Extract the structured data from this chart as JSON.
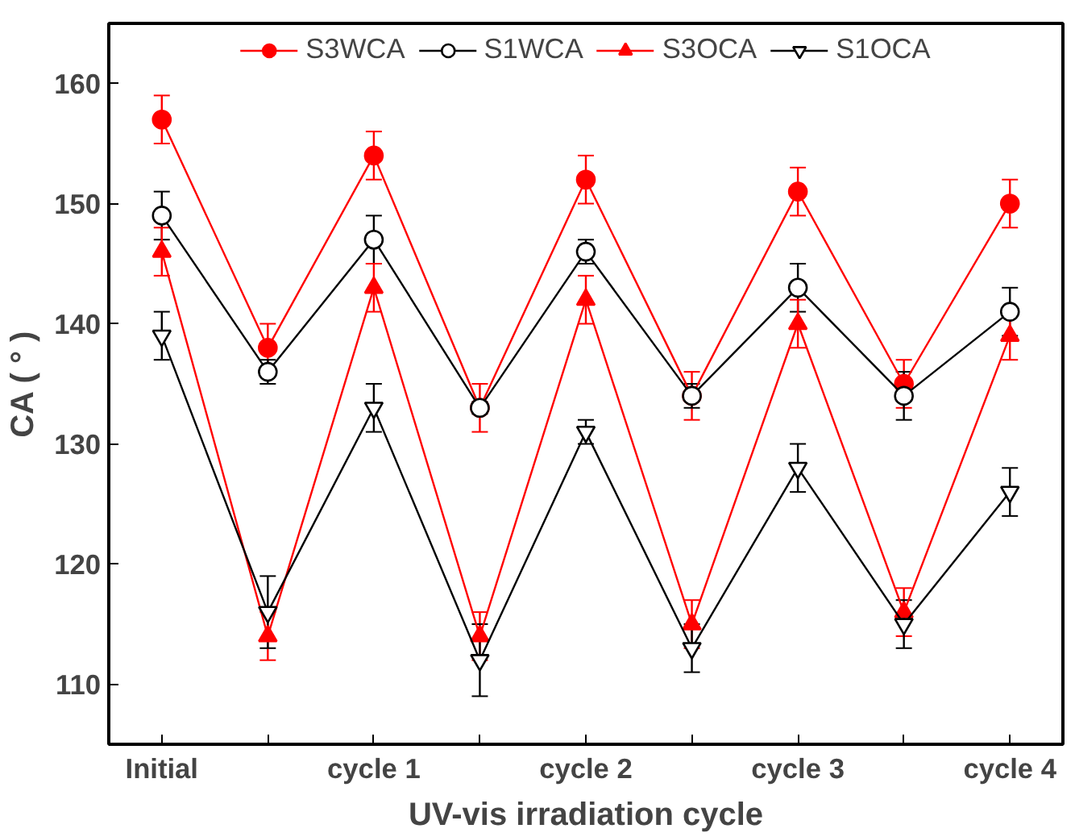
{
  "chart_data": {
    "type": "line",
    "xlabel": "UV-vis irradiation cycle",
    "ylabel": "CA ( ° )",
    "categories": [
      "Initial",
      null,
      "cycle 1",
      null,
      "cycle 2",
      null,
      "cycle 3",
      null,
      "cycle 4"
    ],
    "ylim": [
      105,
      165
    ],
    "yticks": [
      110,
      120,
      130,
      140,
      150,
      160
    ],
    "grid": false,
    "legend": "top",
    "series": [
      {
        "name": "S3WCA",
        "color": "#ff0000",
        "marker": "circle",
        "values": [
          157,
          138,
          154,
          133,
          152,
          134,
          151,
          135,
          150
        ],
        "errors": [
          2,
          2,
          2,
          2,
          2,
          2,
          2,
          2,
          2
        ]
      },
      {
        "name": "S1WCA",
        "color": "#000000",
        "marker": "circle_open",
        "values": [
          149,
          136,
          147,
          133,
          146,
          134,
          143,
          134,
          141
        ],
        "errors": [
          2,
          1,
          2,
          0.5,
          1,
          1,
          2,
          2,
          2
        ]
      },
      {
        "name": "S3OCA",
        "color": "#ff0000",
        "marker": "triangle",
        "values": [
          146,
          114,
          143,
          114,
          142,
          115,
          140,
          116,
          139
        ],
        "errors": [
          2,
          2,
          2,
          2,
          2,
          2,
          2,
          2,
          2
        ]
      },
      {
        "name": "S1OCA",
        "color": "#000000",
        "marker": "triangle_open",
        "values": [
          139,
          116,
          133,
          112,
          131,
          113,
          128,
          115,
          126
        ],
        "errors": [
          2,
          3,
          2,
          3,
          1,
          2,
          2,
          2,
          2
        ]
      }
    ]
  }
}
